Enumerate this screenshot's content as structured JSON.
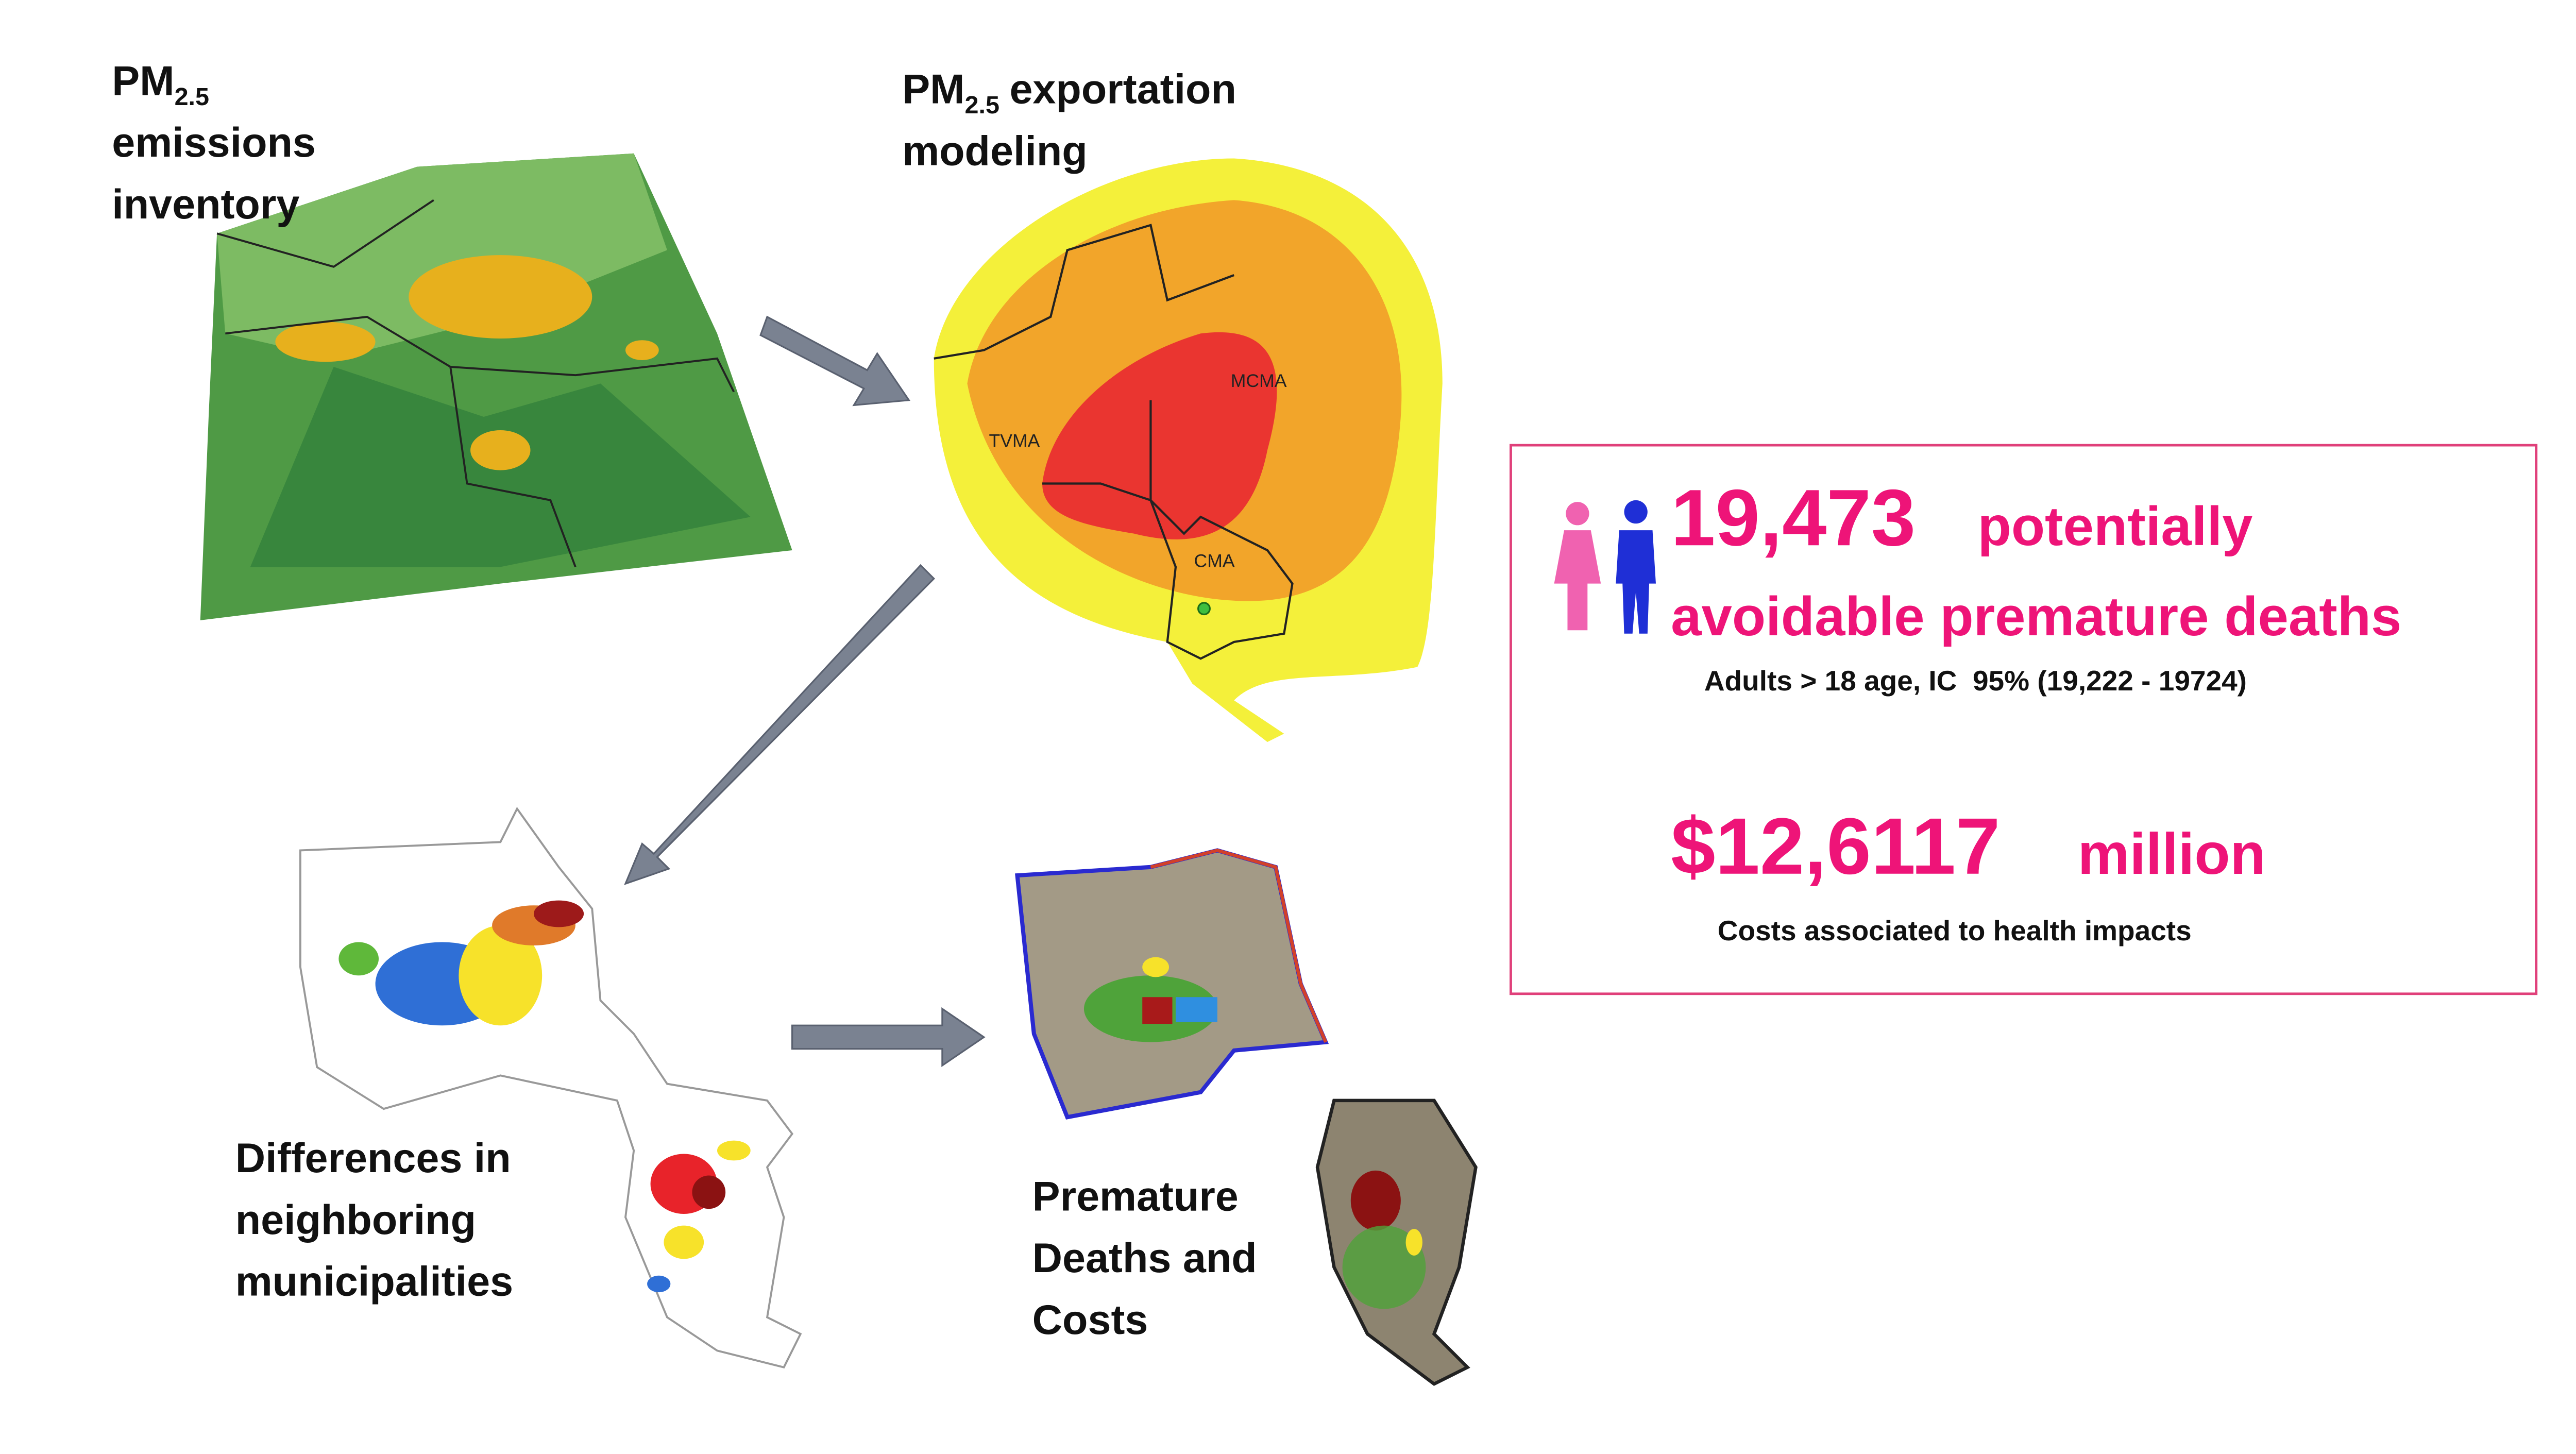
{
  "panels": {
    "emissions": {
      "title": "PM",
      "title_sub": "2.5",
      "lines": [
        "emissions",
        "inventory"
      ]
    },
    "exportation": {
      "title": "PM",
      "title_sub": "2.5",
      "title_rest": "exportation",
      "lines": [
        "modeling"
      ],
      "map_labels": [
        "TVMA",
        "MCMA",
        "CMA"
      ]
    },
    "differences": {
      "lines": [
        "Differences in",
        "neighboring",
        "municipalities"
      ]
    },
    "deaths": {
      "lines": [
        "Premature",
        "Deaths and",
        "Costs"
      ]
    }
  },
  "results": {
    "deaths_number": "19,473",
    "deaths_text_1": "potentially",
    "deaths_text_2": "avoidable premature deaths",
    "deaths_note": "Adults > 18 age, IC  95% (19,222 - 19724)",
    "cost_number": "$12,6117",
    "cost_unit": "million",
    "cost_note": "Costs associated to health impacts"
  }
}
